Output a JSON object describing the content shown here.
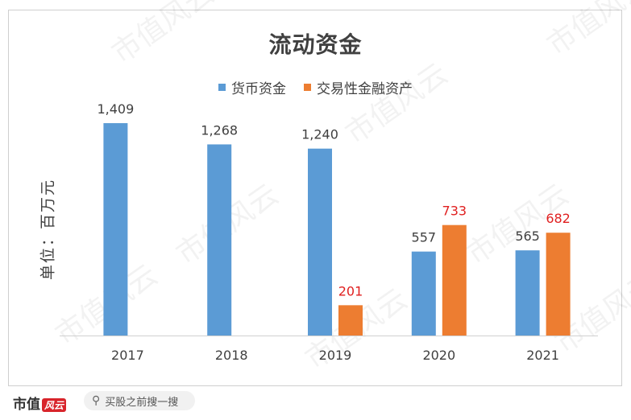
{
  "chart_data": {
    "type": "bar",
    "title": "流动资金",
    "ylabel": "单位：百万元",
    "xlabel": "",
    "categories": [
      "2017",
      "2018",
      "2019",
      "2020",
      "2021"
    ],
    "series": [
      {
        "name": "货币资金",
        "values": [
          1409,
          1268,
          1240,
          557,
          565
        ],
        "color": "#5B9BD5",
        "label_color": "#404040"
      },
      {
        "name": "交易性金融资产",
        "values": [
          null,
          null,
          201,
          733,
          682
        ],
        "color": "#ED7D31",
        "label_color": "#E02020"
      }
    ],
    "ylim": [
      0,
      1500
    ],
    "grid": false,
    "legend": "top"
  },
  "watermark": "市值风云",
  "footer": {
    "brand": "市值",
    "brand_mark": "风云",
    "search_placeholder": "买股之前搜一搜",
    "search_icon": "search-icon"
  }
}
